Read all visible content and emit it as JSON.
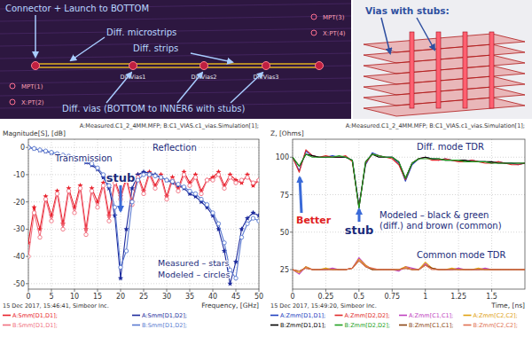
{
  "pcb_panel": {
    "labels": [
      "Connector + Launch to BOTTOM",
      "Diff. microstrips",
      "Diff. strips",
      "Diff. vias (BOTTOM to INNER6 with stubs)"
    ],
    "ports": [
      "MPT(1)",
      "X:PT(2)",
      "MPT(3)",
      "X:PT(4)"
    ],
    "via_labels": [
      "DiffVias1",
      "DiffVias2",
      "DiffVias3"
    ]
  },
  "model_panel": {
    "title": "Vias with stubs:"
  },
  "chart_data": [
    {
      "type": "line",
      "subtitle": "A:Measured.C1_2_4MM.MFP; B:C1_VIAS.c1_vias.Simulation[1];",
      "y_label": "Magnitude[S], [dB]",
      "x_label": "Frequency, [GHz]",
      "footer": "15 Dec 2017, 15:46:41, Simbeor Inc.",
      "annotations": [
        "Transmission",
        "Reflection",
        "stub",
        "Measured – stars",
        "Modeled – circles"
      ],
      "x": [
        0,
        1.25,
        2.5,
        3.75,
        5,
        6.25,
        7.5,
        8.75,
        10,
        11.25,
        12.5,
        13.75,
        15,
        16.25,
        17.5,
        18.75,
        20,
        21.25,
        22.5,
        23.75,
        25,
        26.25,
        27.5,
        28.75,
        30,
        31.25,
        32.5,
        33.75,
        35,
        36.25,
        37.5,
        38.75,
        40,
        41.25,
        42.5,
        43.75,
        45,
        46.25,
        47.5,
        48.75,
        50
      ],
      "xlim": [
        0,
        50
      ],
      "xticks": [
        0,
        5,
        10,
        15,
        20,
        25,
        30,
        35,
        40,
        45,
        50
      ],
      "ylim": [
        -52,
        3
      ],
      "yticks": [
        0,
        -10,
        -20,
        -30,
        -40,
        -50
      ],
      "grid": true,
      "series": [
        {
          "name": "A:Smm[D1,D1];",
          "color": "#e8202a",
          "marker": "star",
          "values": [
            -35,
            -22,
            -30,
            -18,
            -25,
            -16,
            -28,
            -15,
            -22,
            -14,
            -30,
            -15,
            -20,
            -13,
            -25,
            -12,
            -18,
            -11,
            -20,
            -10,
            -16,
            -9,
            -14,
            -10,
            -18,
            -11,
            -15,
            -9,
            -13,
            -10,
            -16,
            -12,
            -11,
            -9,
            -14,
            -10,
            -12,
            -13,
            -10,
            -14,
            -12
          ]
        },
        {
          "name": "A:Smm[D1,D2];",
          "color": "#1c2a9c",
          "marker": "star",
          "values": [
            0,
            -0.5,
            -1,
            -1.5,
            -2,
            -2.5,
            -3,
            -3.5,
            -4,
            -4.5,
            -5.5,
            -6.5,
            -8,
            -11,
            -15,
            -25,
            -48,
            -30,
            -15,
            -10,
            -9,
            -9.5,
            -10,
            -11,
            -12,
            -13,
            -14,
            -15,
            -17,
            -18,
            -20,
            -22,
            -25,
            -30,
            -38,
            -50,
            -42,
            -30,
            -26,
            -24,
            -25
          ]
        },
        {
          "name": "B:Smm[D1,D1];",
          "color": "#f07080",
          "marker": "circle",
          "values": [
            -40,
            -24,
            -33,
            -19,
            -27,
            -17,
            -30,
            -16,
            -24,
            -15,
            -32,
            -16,
            -22,
            -14,
            -27,
            -13,
            -19,
            -12,
            -21,
            -11,
            -17,
            -10,
            -15,
            -11,
            -19,
            -12,
            -16,
            -10,
            -14,
            -11,
            -17,
            -12,
            -12,
            -10,
            -15,
            -11,
            -13,
            -12,
            -11,
            -13,
            -12
          ]
        },
        {
          "name": "B:Smm[D1,D2];",
          "color": "#5a7ad0",
          "marker": "circle",
          "values": [
            0,
            -0.4,
            -0.9,
            -1.3,
            -1.8,
            -2.3,
            -2.8,
            -3.2,
            -3.7,
            -4.2,
            -5,
            -6,
            -7.5,
            -10,
            -14,
            -22,
            -44,
            -38,
            -20,
            -12,
            -10,
            -10,
            -10.5,
            -11,
            -12,
            -12.5,
            -13.5,
            -14.5,
            -16,
            -17,
            -19,
            -21,
            -24,
            -28,
            -35,
            -45,
            -48,
            -33,
            -28,
            -26,
            -27
          ]
        }
      ]
    },
    {
      "type": "line",
      "subtitle": "A:Measured.C1_2_4MM.MFP; B:C1_VIAS.c1_vias.Simulation[1];",
      "y_label": "Z, [Ohms]",
      "x_label": "Time, [ns]",
      "footer": "15 Dec 2017, 15:49:20, Simbeor Inc.",
      "annotations": [
        "Diff. mode TDR",
        "Better",
        "stub",
        "Modeled – black & green",
        "(diff.) and brown (common)",
        "Common mode TDR"
      ],
      "x": [
        0,
        0.05,
        0.1,
        0.15,
        0.2,
        0.25,
        0.3,
        0.35,
        0.4,
        0.45,
        0.5,
        0.55,
        0.6,
        0.65,
        0.7,
        0.75,
        0.8,
        0.85,
        0.9,
        0.95,
        1,
        1.05,
        1.1,
        1.15,
        1.2,
        1.25,
        1.3,
        1.35,
        1.4,
        1.45,
        1.5,
        1.55,
        1.6,
        1.65,
        1.7,
        1.75
      ],
      "xlim": [
        0,
        1.75
      ],
      "xticks": [
        0,
        0.25,
        0.5,
        0.75,
        1,
        1.25,
        1.5
      ],
      "ylim": [
        12,
        112
      ],
      "yticks": [
        25,
        50,
        75,
        100
      ],
      "grid": true,
      "series": [
        {
          "name": "A:Zmm[D1,D1];",
          "color": "#2040c0",
          "values": [
            100,
            91,
            104,
            101,
            100,
            100,
            101,
            100,
            100,
            98,
            68,
            95,
            103,
            101,
            100,
            100,
            96,
            84,
            95,
            99,
            100,
            99,
            98,
            99,
            98,
            98,
            97,
            98,
            97,
            97,
            96,
            97,
            96,
            96,
            95,
            96
          ]
        },
        {
          "name": "A:Zmm[D2,D2];",
          "color": "#e02828",
          "values": [
            100,
            90,
            105,
            101,
            100,
            101,
            100,
            100,
            101,
            97,
            67,
            96,
            102,
            101,
            100,
            99,
            95,
            85,
            96,
            99,
            100,
            98,
            98,
            99,
            98,
            97,
            97,
            98,
            97,
            96,
            96,
            97,
            96,
            95,
            95,
            96
          ]
        },
        {
          "name": "A:Zmm[C1,C1];",
          "color": "#c040c0",
          "values": [
            25,
            22,
            27,
            25,
            25,
            25,
            26,
            25,
            25,
            26,
            33,
            28,
            25,
            25,
            25,
            25,
            24,
            27,
            26,
            25,
            29,
            26,
            25,
            25,
            25,
            26,
            25,
            25,
            25,
            26,
            25,
            25,
            25,
            25,
            25,
            25
          ]
        },
        {
          "name": "A:Zmm[C2,C2];",
          "color": "#e0a010",
          "values": [
            25,
            23,
            27,
            25,
            25,
            26,
            25,
            25,
            25,
            26,
            32,
            28,
            25,
            25,
            25,
            25,
            25,
            27,
            25,
            25,
            30,
            26,
            25,
            25,
            26,
            25,
            25,
            25,
            26,
            25,
            25,
            25,
            25,
            25,
            25,
            25
          ]
        },
        {
          "name": "B:Zmm[D1,D1];",
          "color": "#000000",
          "values": [
            100,
            94,
            102,
            101,
            100,
            100,
            100,
            100,
            100,
            98,
            66,
            97,
            102,
            100,
            100,
            100,
            97,
            86,
            96,
            99,
            100,
            99,
            99,
            98,
            98,
            98,
            98,
            97,
            97,
            97,
            97,
            96,
            96,
            96,
            96,
            96
          ]
        },
        {
          "name": "B:Zmm[D2,D2];",
          "color": "#20a020",
          "values": [
            100,
            94,
            102,
            100,
            100,
            100,
            100,
            101,
            100,
            98,
            66,
            97,
            102,
            101,
            100,
            100,
            97,
            86,
            96,
            99,
            99,
            99,
            99,
            98,
            98,
            98,
            97,
            97,
            97,
            97,
            96,
            96,
            96,
            96,
            96,
            96
          ]
        },
        {
          "name": "B:Zmm[C1,C1];",
          "color": "#8b4513",
          "values": [
            25,
            24,
            26,
            25,
            25,
            25,
            25,
            25,
            25,
            26,
            31,
            27,
            25,
            25,
            25,
            25,
            25,
            26,
            25,
            25,
            28,
            26,
            25,
            25,
            25,
            25,
            25,
            25,
            25,
            25,
            25,
            25,
            25,
            25,
            25,
            25
          ]
        },
        {
          "name": "B:Zmm[C2,C2];",
          "color": "#e07050",
          "values": [
            25,
            24,
            26,
            25,
            25,
            25,
            25,
            25,
            25,
            26,
            31,
            27,
            26,
            25,
            25,
            25,
            25,
            26,
            25,
            25,
            28,
            25,
            25,
            25,
            25,
            25,
            25,
            25,
            25,
            25,
            25,
            25,
            25,
            25,
            25,
            25
          ]
        }
      ]
    }
  ]
}
